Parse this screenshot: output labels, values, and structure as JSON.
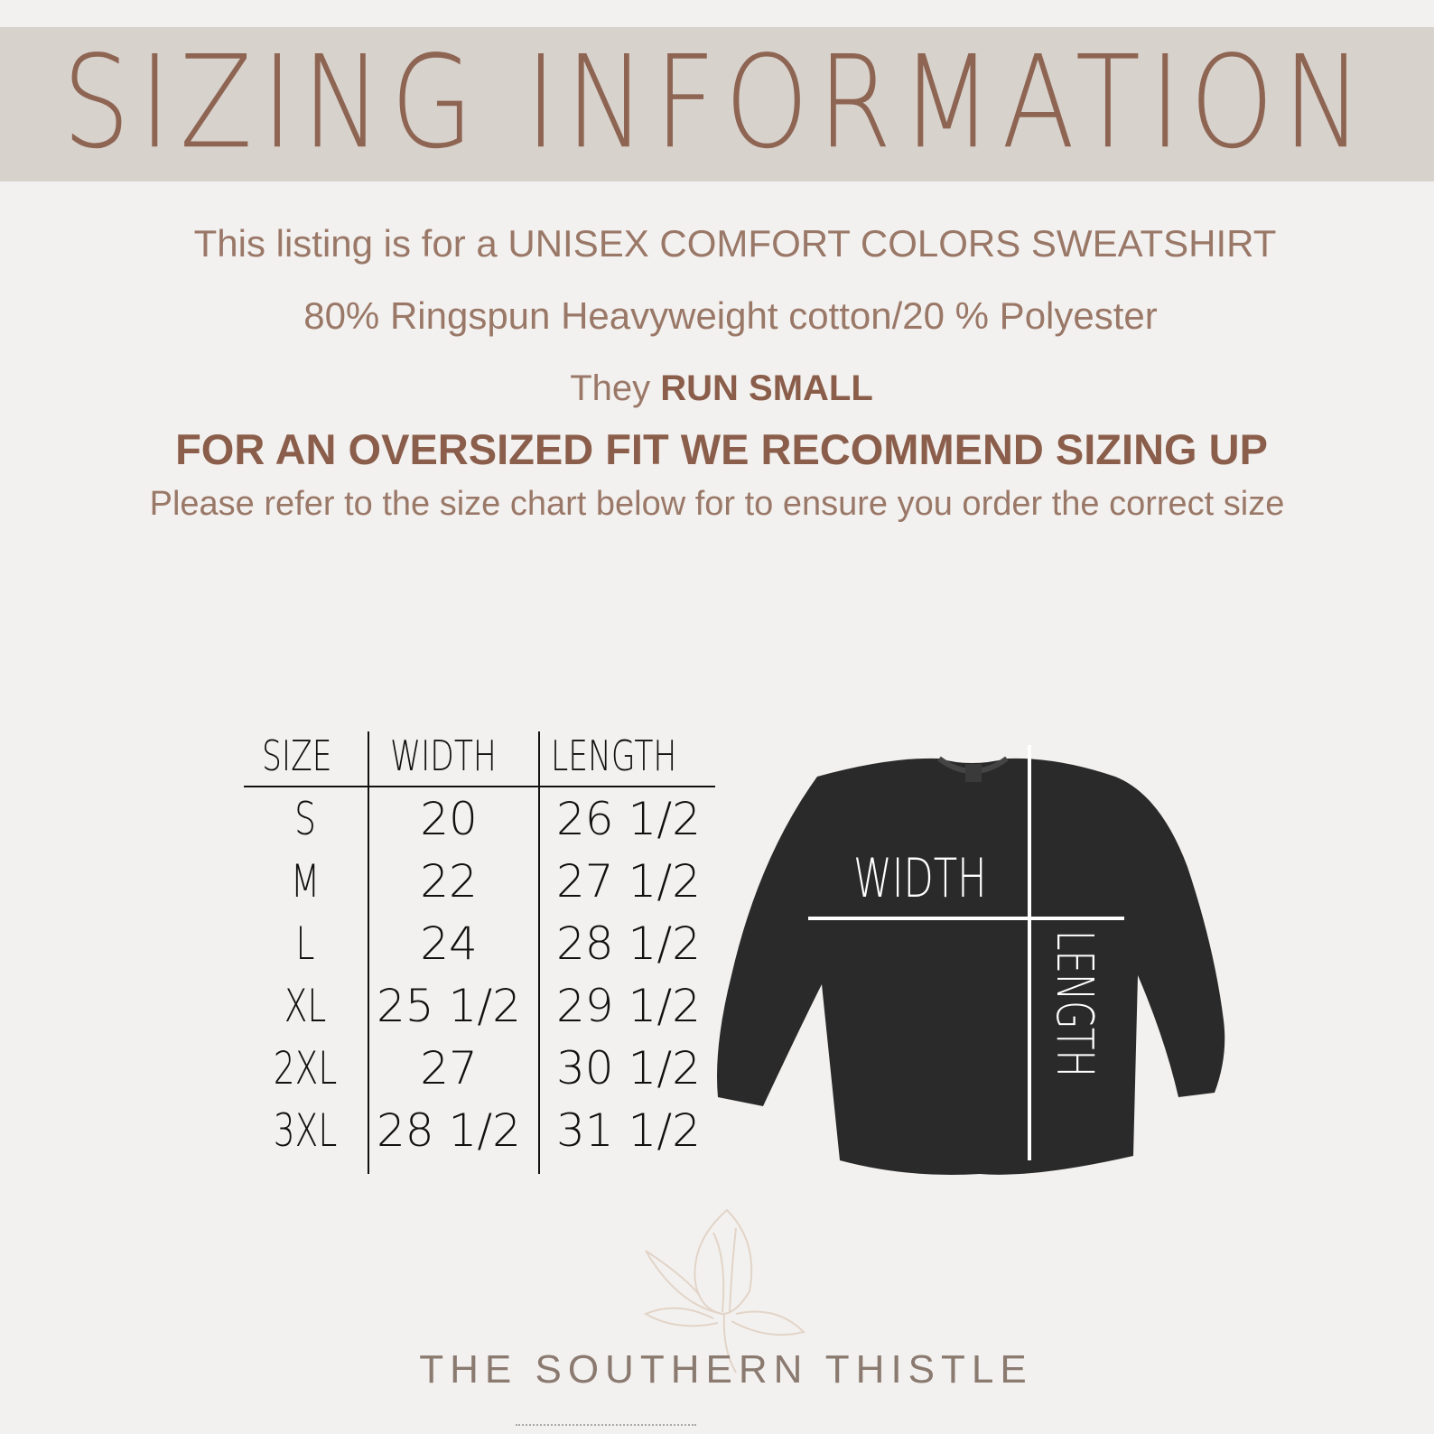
{
  "header": {
    "title": "SIZING INFORMATION"
  },
  "info": {
    "line1": "This listing is for a UNISEX COMFORT COLORS SWEATSHIRT",
    "line2": "80% Ringspun Heavyweight cotton/20 % Polyester",
    "line3_prefix": "They ",
    "line3_bold": "RUN SMALL",
    "line4": "FOR AN OVERSIZED FIT  WE RECOMMEND SIZING UP",
    "line5": "Please refer to the size chart below for to ensure you order the correct size"
  },
  "size_table": {
    "columns": [
      "SIZE",
      "WIDTH",
      "LENGTH"
    ],
    "rows": [
      [
        "S",
        "20",
        "26 1/2"
      ],
      [
        "M",
        "22",
        "27 1/2"
      ],
      [
        "L",
        "24",
        "28 1/2"
      ],
      [
        "XL",
        "25 1/2",
        "29 1/2"
      ],
      [
        "2XL",
        "27",
        "30 1/2"
      ],
      [
        "3XL",
        "28 1/2",
        "31 1/2"
      ]
    ]
  },
  "diagram": {
    "width_label": "WIDTH",
    "length_label": "LENGTH",
    "garment_color": "#2a2a2a"
  },
  "brand": {
    "name": "THE SOUTHERN THISTLE",
    "logo_icon": "thistle-icon"
  },
  "colors": {
    "accent": "#8e6553",
    "band": "#d8d2cd",
    "background": "#f3f1ef"
  }
}
